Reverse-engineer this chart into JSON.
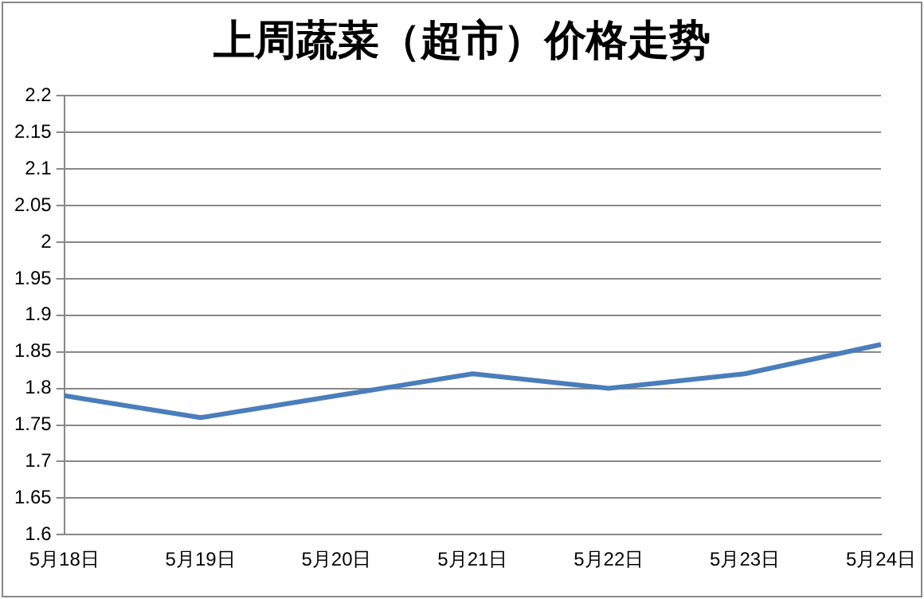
{
  "chart_data": {
    "type": "line",
    "title": "上周蔬菜（超市）价格走势",
    "categories": [
      "5月18日",
      "5月19日",
      "5月20日",
      "5月21日",
      "5月22日",
      "5月23日",
      "5月24日"
    ],
    "series": [
      {
        "color": "#4a7ebb",
        "values": [
          1.79,
          1.76,
          1.79,
          1.82,
          1.8,
          1.82,
          1.86
        ]
      }
    ],
    "ylim": [
      1.6,
      2.2
    ],
    "yticks": [
      1.6,
      1.65,
      1.7,
      1.75,
      1.8,
      1.85,
      1.9,
      1.95,
      2,
      2.05,
      2.1,
      2.15,
      2.2
    ],
    "grid": "y",
    "legend": false,
    "marker": "none",
    "line_style": "solid"
  }
}
